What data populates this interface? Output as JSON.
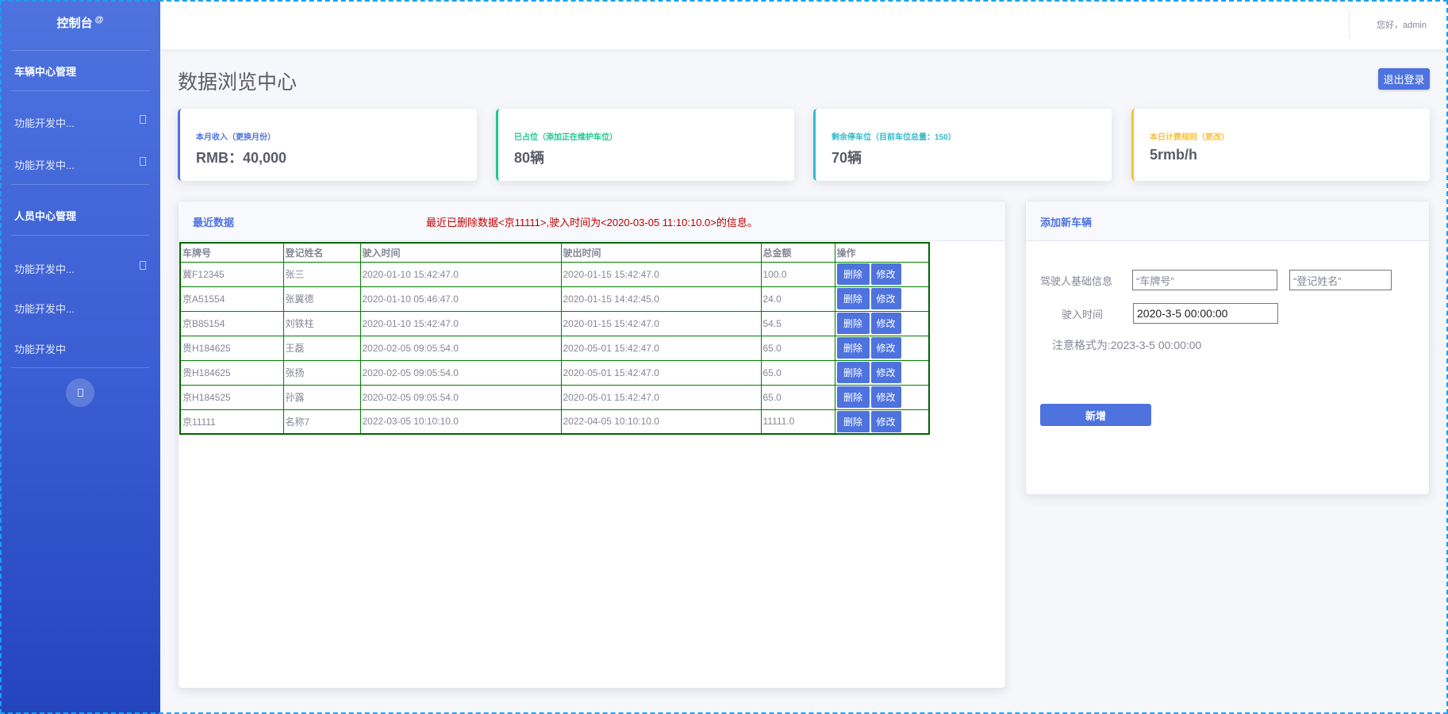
{
  "sidebar": {
    "brand": "控制台",
    "brand_sup": "@",
    "sections": [
      {
        "title": "车辆中心管理",
        "items": [
          "功能开发中...",
          "功能开发中..."
        ]
      },
      {
        "title": "人员中心管理",
        "items": [
          "功能开发中...",
          "功能开发中...",
          "功能开发中"
        ]
      }
    ]
  },
  "topbar": {
    "greeting": "您好，admin"
  },
  "page": {
    "title": "数据浏览中心",
    "logout": "退出登录"
  },
  "cards": [
    {
      "label": "本月收入（更换月份）",
      "value": "RMB：40,000",
      "color": "#4e73df"
    },
    {
      "label": "已占位（添加正在维护车位）",
      "value": "80辆",
      "color": "#1cc88a"
    },
    {
      "label": "剩余停车位（目前车位总量：150）",
      "value": "70辆",
      "color": "#36b9cc"
    },
    {
      "label": "本日计费规则（更改）",
      "value": "5rmb/h",
      "color": "#f6c23e"
    }
  ],
  "recent": {
    "title": "最近数据",
    "message": "最近已删除数据<京11111>,驶入时间为<2020-03-05 11:10:10.0>的信息。",
    "columns": [
      "车牌号",
      "登记姓名",
      "驶入时间",
      "驶出时间",
      "总金额",
      "操作"
    ],
    "delete_label": "删除",
    "edit_label": "修改",
    "rows": [
      [
        "冀F12345",
        "张三",
        "2020-01-10 15:42:47.0",
        "2020-01-15 15:42:47.0",
        "100.0"
      ],
      [
        "京A51554",
        "张翼德",
        "2020-01-10 05:46:47.0",
        "2020-01-15 14:42:45.0",
        "24.0"
      ],
      [
        "京B85154",
        "刘铁柱",
        "2020-01-10 15:42:47.0",
        "2020-01-15 15:42:47.0",
        "54.5"
      ],
      [
        "贵H184625",
        "王磊",
        "2020-02-05 09:05:54.0",
        "2020-05-01 15:42:47.0",
        "65.0"
      ],
      [
        "贵H184625",
        "张扬",
        "2020-02-05 09:05:54.0",
        "2020-05-01 15:42:47.0",
        "65.0"
      ],
      [
        "京H184525",
        "孙露",
        "2020-02-05 09:05:54.0",
        "2020-05-01 15:42:47.0",
        "65.0"
      ],
      [
        "京11111",
        "名称7",
        "2022-03-05 10:10:10.0",
        "2022-04-05 10:10:10.0",
        "11111.0"
      ]
    ]
  },
  "add": {
    "title": "添加新车辆",
    "driver_label": "驾驶人基础信息",
    "plate_value": "“车牌号”",
    "name_value": "“登记姓名”",
    "time_label": "驶入时间",
    "time_value": "2020-3-5 00:00:00",
    "note": "注意格式为:2023-3-5 00:00:00",
    "submit": "新增"
  }
}
